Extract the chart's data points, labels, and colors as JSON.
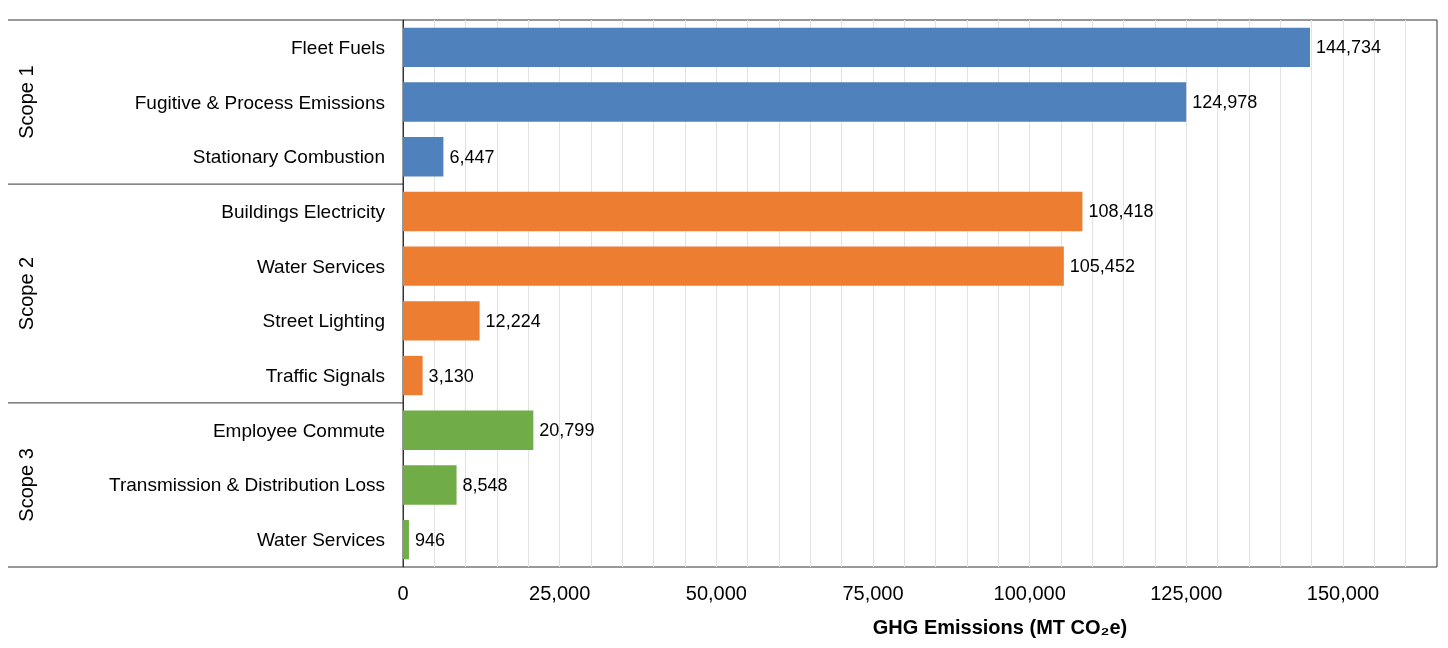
{
  "chart_data": {
    "type": "bar",
    "orientation": "horizontal",
    "xlabel": "GHG Emissions (MT CO₂e)",
    "categories": [
      "Fleet Fuels",
      "Fugitive & Process Emissions",
      "Stationary Combustion",
      "Buildings Electricity",
      "Water Services",
      "Street Lighting",
      "Traffic Signals",
      "Employee Commute",
      "Transmission & Distribution Loss",
      "Water Services"
    ],
    "annotations": [
      "Scope 1",
      "Scope 2",
      "Scope 3"
    ],
    "series": [
      {
        "color": "#4f81bd",
        "values": [
          144734,
          124978,
          6447,
          null,
          null,
          null,
          null,
          null,
          null,
          null
        ],
        "value_labels": [
          "144,734",
          "124,978",
          "6,447",
          null,
          null,
          null,
          null,
          null,
          null,
          null
        ]
      },
      {
        "color": "#ed7d31",
        "values": [
          null,
          null,
          null,
          108418,
          105452,
          12224,
          3130,
          null,
          null,
          null
        ],
        "value_labels": [
          null,
          null,
          null,
          "108,418",
          "105,452",
          "12,224",
          "3,130",
          null,
          null,
          null
        ]
      },
      {
        "color": "#70ad47",
        "values": [
          null,
          null,
          null,
          null,
          null,
          null,
          null,
          20799,
          8548,
          946
        ],
        "value_labels": [
          null,
          null,
          null,
          null,
          null,
          null,
          null,
          "20,799",
          "8,548",
          "946"
        ]
      }
    ],
    "xlim": [
      0,
      165000
    ],
    "xticks": [
      0,
      {
        "value": 5000,
        "label": null
      },
      {
        "value": 10000,
        "label": null
      },
      {
        "value": 15000,
        "label": null
      },
      {
        "value": 20000,
        "label": null
      },
      {
        "value": 25000,
        "label": "25,000"
      },
      {
        "value": 30000,
        "label": null
      },
      {
        "value": 35000,
        "label": null
      },
      {
        "value": 40000,
        "label": null
      },
      {
        "value": 45000,
        "label": null
      },
      {
        "value": 50000,
        "label": "50,000"
      },
      {
        "value": 55000,
        "label": null
      },
      {
        "value": 60000,
        "label": null
      },
      {
        "value": 65000,
        "label": null
      },
      {
        "value": 70000,
        "label": null
      },
      {
        "value": 75000,
        "label": "75,000"
      },
      {
        "value": 80000,
        "label": null
      },
      {
        "value": 85000,
        "label": null
      },
      {
        "value": 90000,
        "label": null
      },
      {
        "value": 95000,
        "label": null
      },
      {
        "value": 100000,
        "label": "100,000"
      },
      {
        "value": 105000,
        "label": null
      },
      {
        "value": 110000,
        "label": null
      },
      {
        "value": 115000,
        "label": null
      },
      {
        "value": 120000,
        "label": null
      },
      {
        "value": 125000,
        "label": "125,000"
      },
      {
        "value": 130000,
        "label": null
      },
      {
        "value": 135000,
        "label": null
      },
      {
        "value": 140000,
        "label": null
      },
      {
        "value": 145000,
        "label": null
      },
      {
        "value": 150000,
        "label": "150,000"
      },
      {
        "value": 155000,
        "label": null
      },
      {
        "value": 160000,
        "label": null
      }
    ],
    "grid": "x"
  }
}
